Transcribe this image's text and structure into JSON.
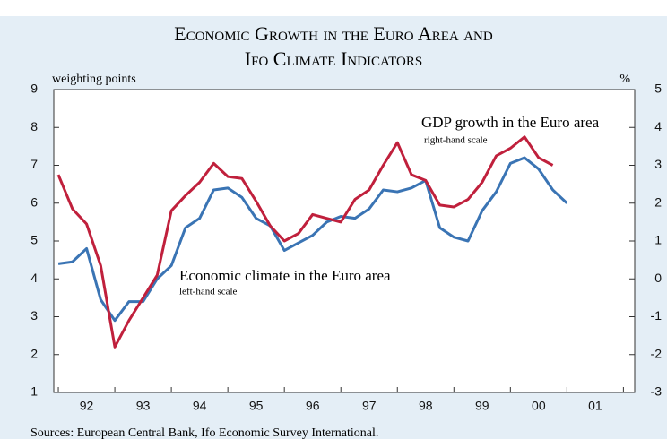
{
  "chart_data": {
    "type": "line",
    "title": [
      "Economic Growth in the Euro Area and",
      "Ifo Climate Indicators"
    ],
    "y_label": "weighting points",
    "y2_label": "%",
    "source": "Sources: European Central Bank, Ifo Economic Survey International.",
    "x": [
      1992,
      1992.25,
      1992.5,
      1992.75,
      1993,
      1993.25,
      1993.5,
      1993.75,
      1994,
      1994.25,
      1994.5,
      1994.75,
      1995,
      1995.25,
      1995.5,
      1995.75,
      1996,
      1996.25,
      1996.5,
      1996.75,
      1997,
      1997.25,
      1997.5,
      1997.75,
      1998,
      1998.25,
      1998.5,
      1998.75,
      1999,
      1999.25,
      1999.5,
      1999.75,
      2000,
      2000.25,
      2000.5,
      2000.75,
      2001
    ],
    "series": [
      {
        "name": "Economic climate in the Euro area",
        "note": "left-hand scale",
        "color": "#3a74b4",
        "axis": "y",
        "values": [
          4.4,
          4.45,
          4.8,
          3.45,
          2.9,
          3.4,
          3.4,
          4.0,
          4.35,
          5.35,
          5.6,
          6.35,
          6.4,
          6.15,
          5.6,
          5.4,
          4.75,
          4.95,
          5.15,
          5.5,
          5.65,
          5.6,
          5.85,
          6.35,
          6.3,
          6.4,
          6.6,
          5.35,
          5.1,
          5.0,
          5.8,
          6.3,
          7.05,
          7.2,
          6.9,
          6.35,
          6.0
        ]
      },
      {
        "name": "GDP growth in the Euro area",
        "note": "right-hand scale",
        "color": "#c0203c",
        "axis": "y2",
        "values": [
          2.75,
          1.85,
          1.45,
          0.35,
          -1.8,
          -1.1,
          -0.5,
          0.1,
          1.8,
          2.2,
          2.55,
          3.05,
          2.7,
          2.65,
          2.05,
          1.4,
          1.0,
          1.2,
          1.7,
          1.6,
          1.5,
          2.1,
          2.35,
          3.0,
          3.6,
          2.75,
          2.6,
          1.95,
          1.9,
          2.1,
          2.55,
          3.25,
          3.45,
          3.75,
          3.2,
          3.0,
          null
        ]
      }
    ],
    "xlim": [
      1991.92,
      2002.2
    ],
    "xticks": [
      {
        "value": 1992.5,
        "label": "92"
      },
      {
        "value": 1993.5,
        "label": "93"
      },
      {
        "value": 1994.5,
        "label": "94"
      },
      {
        "value": 1995.5,
        "label": "95"
      },
      {
        "value": 1996.5,
        "label": "96"
      },
      {
        "value": 1997.5,
        "label": "97"
      },
      {
        "value": 1998.5,
        "label": "98"
      },
      {
        "value": 1999.5,
        "label": "99"
      },
      {
        "value": 2000.5,
        "label": "00"
      },
      {
        "value": 2001.5,
        "label": "01"
      }
    ],
    "xtick_marks": [
      1992,
      1993,
      1994,
      1995,
      1996,
      1997,
      1998,
      1999,
      2000,
      2001,
      2002
    ],
    "ylim": [
      1,
      9
    ],
    "yticks": [
      1,
      2,
      3,
      4,
      5,
      6,
      7,
      8,
      9
    ],
    "y2lim": [
      -3,
      5
    ],
    "y2ticks": [
      -3,
      -2,
      -1,
      0,
      1,
      2,
      3,
      4,
      5
    ]
  }
}
